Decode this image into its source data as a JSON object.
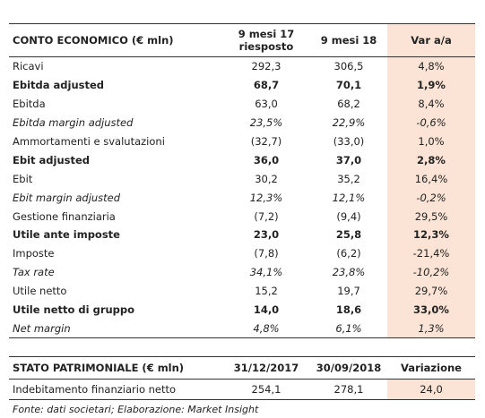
{
  "income_table": {
    "header": [
      "CONTO ECONOMICO (€ mln)",
      "9 mesi 17 riesposto",
      "9 mesi 18",
      "Var a/a"
    ],
    "rows": [
      [
        "Ricavi",
        "292,3",
        "306,5",
        "4,8%"
      ],
      [
        "Ebitda adjusted",
        "68,7",
        "70,1",
        "1,9%"
      ],
      [
        "Ebitda",
        "63,0",
        "68,2",
        "8,4%"
      ],
      [
        "Ebitda margin adjusted",
        "23,5%",
        "22,9%",
        "-0,6%"
      ],
      [
        "Ammortamenti e svalutazioni",
        "(32,7)",
        "(33,0)",
        "1,0%"
      ],
      [
        "Ebit adjusted",
        "36,0",
        "37,0",
        "2,8%"
      ],
      [
        "Ebit",
        "30,2",
        "35,2",
        "16,4%"
      ],
      [
        "Ebit margin adjusted",
        "12,3%",
        "12,1%",
        "-0,2%"
      ],
      [
        "Gestione finanziaria",
        "(7,2)",
        "(9,4)",
        "29,5%"
      ],
      [
        "Utile ante imposte",
        "23,0",
        "25,8",
        "12,3%"
      ],
      [
        "Imposte",
        "(7,8)",
        "(6,2)",
        "-21,4%"
      ],
      [
        "Tax rate",
        "34,1%",
        "23,8%",
        "-10,2%"
      ],
      [
        "Utile netto",
        "15,2",
        "19,7",
        "29,7%"
      ],
      [
        "Utile netto di gruppo",
        "14,0",
        "18,6",
        "33,0%"
      ],
      [
        "Net margin",
        "4,8%",
        "6,1%",
        "1,3%"
      ]
    ]
  },
  "balance_table": {
    "header": [
      "STATO PATRIMONIALE (€ mln)",
      "31/12/2017",
      "30/09/2018",
      "Variazione"
    ],
    "rows": [
      [
        "Indebitamento finanziario netto",
        "254,1",
        "278,1",
        "24,0"
      ]
    ]
  },
  "footnote": "Fonte: dati societari; Elaborazione: Market Insight"
}
